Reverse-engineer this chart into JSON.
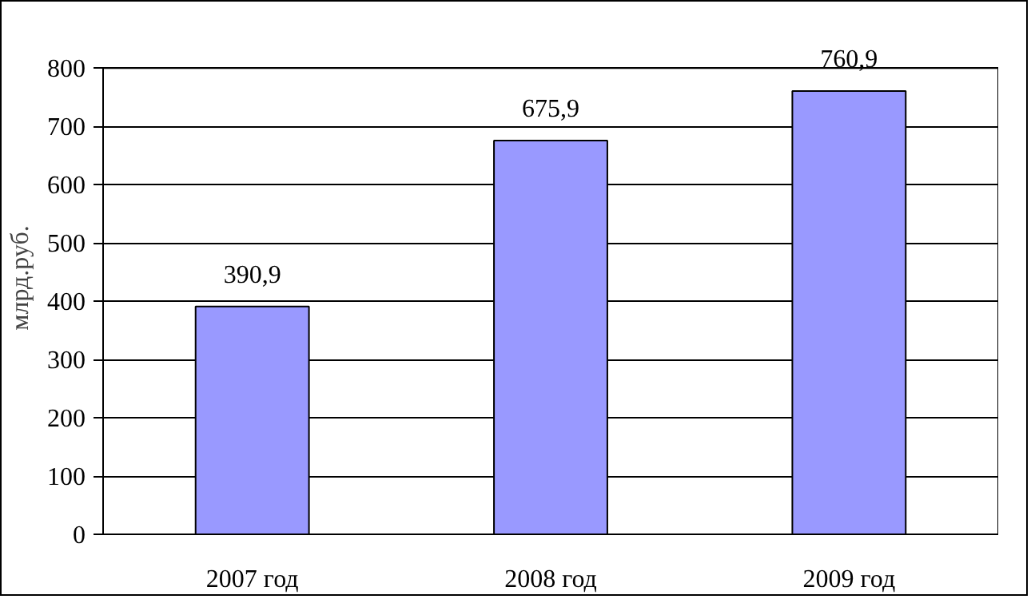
{
  "chart_data": {
    "type": "bar",
    "ylabel": "млрд.руб.",
    "categories": [
      "2007 год",
      "2008 год",
      "2009 год"
    ],
    "values": [
      390.9,
      675.9,
      760.9
    ],
    "value_labels": [
      "390,9",
      "675,9",
      "760,9"
    ],
    "color": "#9999ff",
    "ylim": [
      0,
      800
    ],
    "yticks": [
      0,
      100,
      200,
      300,
      400,
      500,
      600,
      700,
      800
    ],
    "grid": "y"
  }
}
